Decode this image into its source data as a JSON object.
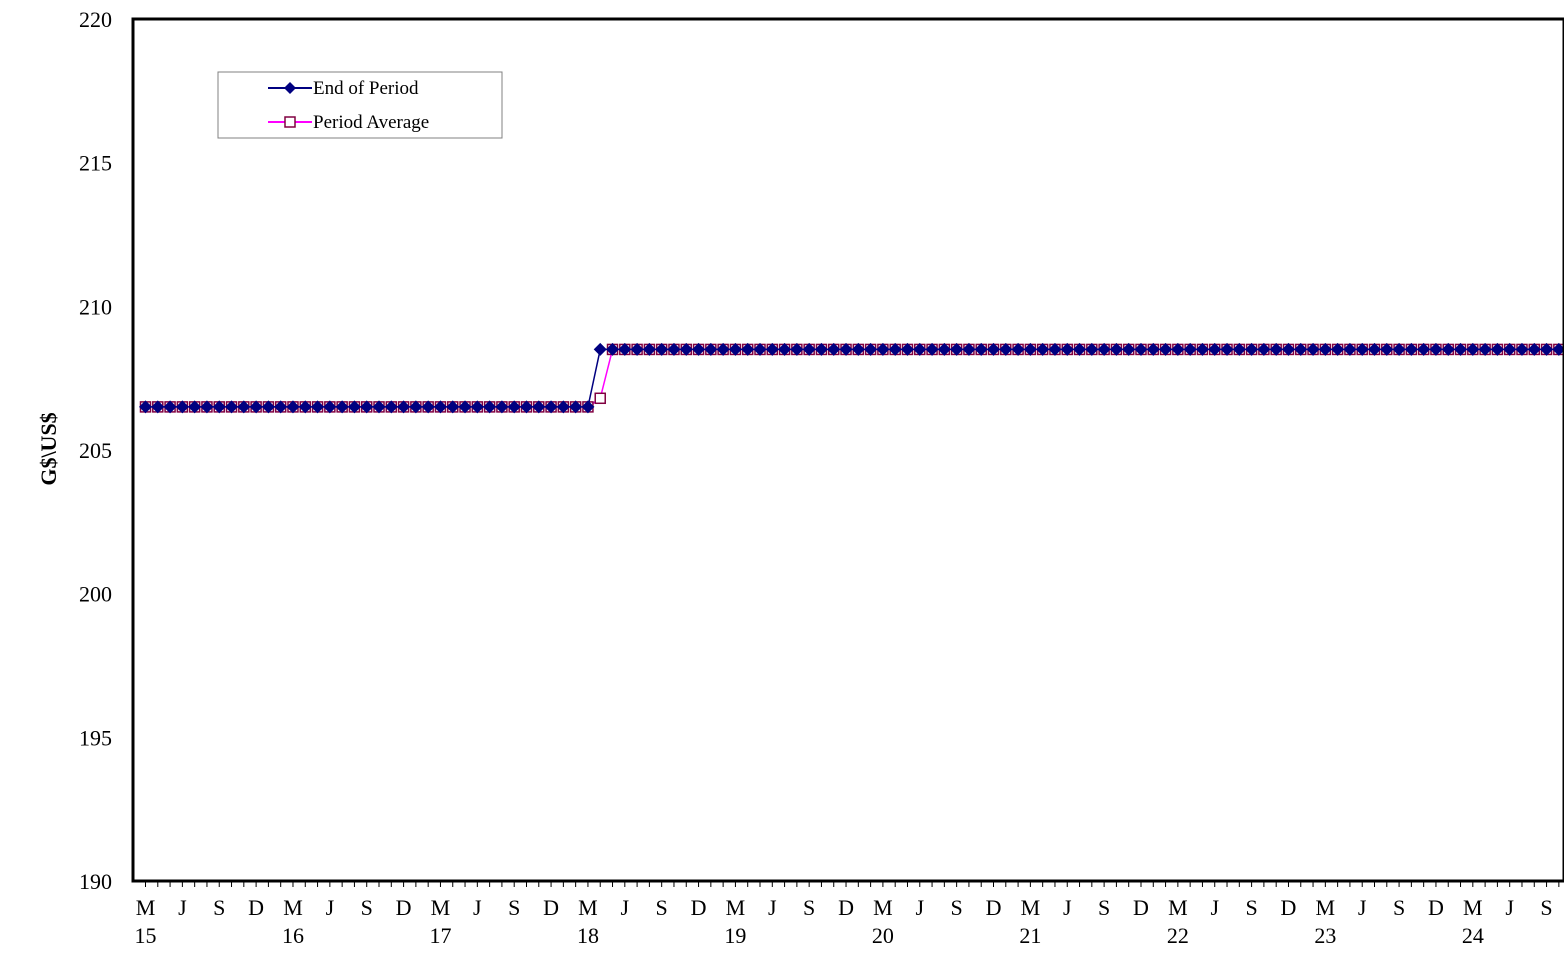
{
  "chart_data": {
    "type": "line",
    "title": "",
    "xlabel": "",
    "ylabel": "G$\\US$",
    "ylim": [
      190,
      220
    ],
    "yticks": [
      190,
      195,
      200,
      205,
      210,
      215,
      220
    ],
    "x_start": "2015-03",
    "x_frequency": "monthly",
    "x_tick_month_labels": [
      "M",
      "J",
      "S",
      "D"
    ],
    "x_tick_year_labels": [
      "15",
      "16",
      "17",
      "18",
      "19",
      "20",
      "21",
      "22",
      "23",
      "24"
    ],
    "grid": false,
    "legend_position": "top-left",
    "series": [
      {
        "name": "End of Period",
        "color": "#000080",
        "marker": "filled-diamond",
        "values": [
          206.5,
          206.5,
          206.5,
          206.5,
          206.5,
          206.5,
          206.5,
          206.5,
          206.5,
          206.5,
          206.5,
          206.5,
          206.5,
          206.5,
          206.5,
          206.5,
          206.5,
          206.5,
          206.5,
          206.5,
          206.5,
          206.5,
          206.5,
          206.5,
          206.5,
          206.5,
          206.5,
          206.5,
          206.5,
          206.5,
          206.5,
          206.5,
          206.5,
          206.5,
          206.5,
          206.5,
          206.5,
          208.5,
          208.5,
          208.5,
          208.5,
          208.5,
          208.5,
          208.5,
          208.5,
          208.5,
          208.5,
          208.5,
          208.5,
          208.5,
          208.5,
          208.5,
          208.5,
          208.5,
          208.5,
          208.5,
          208.5,
          208.5,
          208.5,
          208.5,
          208.5,
          208.5,
          208.5,
          208.5,
          208.5,
          208.5,
          208.5,
          208.5,
          208.5,
          208.5,
          208.5,
          208.5,
          208.5,
          208.5,
          208.5,
          208.5,
          208.5,
          208.5,
          208.5,
          208.5,
          208.5,
          208.5,
          208.5,
          208.5,
          208.5,
          208.5,
          208.5,
          208.5,
          208.5,
          208.5,
          208.5,
          208.5,
          208.5,
          208.5,
          208.5,
          208.5,
          208.5,
          208.5,
          208.5,
          208.5,
          208.5,
          208.5,
          208.5,
          208.5,
          208.5,
          208.5,
          208.5,
          208.5,
          208.5,
          208.5,
          208.5,
          208.5,
          208.5,
          208.5,
          208.5,
          208.5,
          208.5
        ]
      },
      {
        "name": "Period Average",
        "color": "#ff00ff",
        "marker_color": "#800040",
        "marker": "open-square",
        "values": [
          206.5,
          206.5,
          206.5,
          206.5,
          206.5,
          206.5,
          206.5,
          206.5,
          206.5,
          206.5,
          206.5,
          206.5,
          206.5,
          206.5,
          206.5,
          206.5,
          206.5,
          206.5,
          206.5,
          206.5,
          206.5,
          206.5,
          206.5,
          206.5,
          206.5,
          206.5,
          206.5,
          206.5,
          206.5,
          206.5,
          206.5,
          206.5,
          206.5,
          206.5,
          206.5,
          206.5,
          206.5,
          206.8,
          208.5,
          208.5,
          208.5,
          208.5,
          208.5,
          208.5,
          208.5,
          208.5,
          208.5,
          208.5,
          208.5,
          208.5,
          208.5,
          208.5,
          208.5,
          208.5,
          208.5,
          208.5,
          208.5,
          208.5,
          208.5,
          208.5,
          208.5,
          208.5,
          208.5,
          208.5,
          208.5,
          208.5,
          208.5,
          208.5,
          208.5,
          208.5,
          208.5,
          208.5,
          208.5,
          208.5,
          208.5,
          208.5,
          208.5,
          208.5,
          208.5,
          208.5,
          208.5,
          208.5,
          208.5,
          208.5,
          208.5,
          208.5,
          208.5,
          208.5,
          208.5,
          208.5,
          208.5,
          208.5,
          208.5,
          208.5,
          208.5,
          208.5,
          208.5,
          208.5,
          208.5,
          208.5,
          208.5,
          208.5,
          208.5,
          208.5,
          208.5,
          208.5,
          208.5,
          208.5,
          208.5,
          208.5,
          208.5,
          208.5,
          208.5,
          208.5,
          208.5,
          208.5,
          208.5,
          208.5
        ]
      }
    ]
  }
}
